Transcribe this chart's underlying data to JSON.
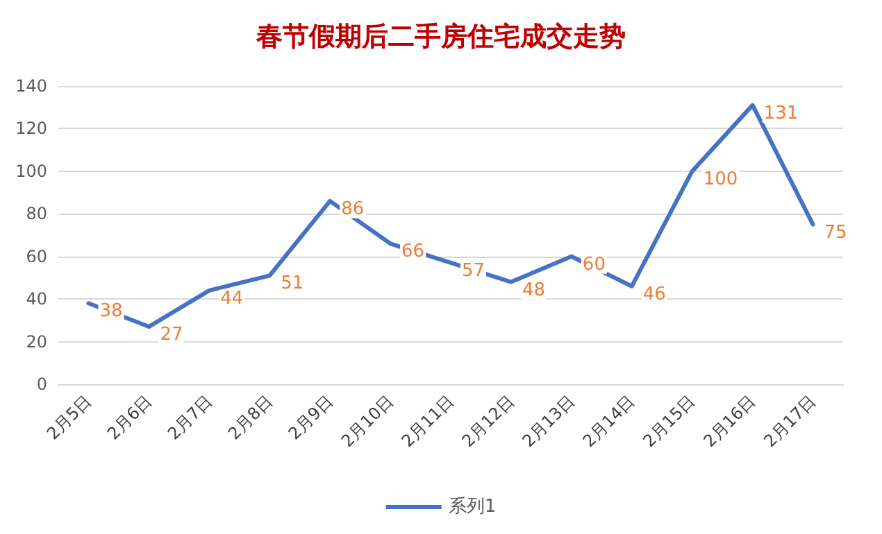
{
  "chart_data": {
    "type": "line",
    "title": "春节假期后二手房住宅成交走势",
    "categories": [
      "2月5日",
      "2月6日",
      "2月7日",
      "2月8日",
      "2月9日",
      "2月10日",
      "2月11日",
      "2月12日",
      "2月13日",
      "2月14日",
      "2月15日",
      "2月16日",
      "2月17日"
    ],
    "series": [
      {
        "name": "系列1",
        "color": "#4472c4",
        "values": [
          38,
          27,
          44,
          51,
          86,
          66,
          57,
          48,
          60,
          46,
          100,
          131,
          75
        ]
      }
    ],
    "ylim": [
      0,
      140
    ],
    "yticks": [
      0,
      20,
      40,
      60,
      80,
      100,
      120,
      140
    ],
    "grid": "y",
    "legend": "bottom",
    "marker": "none",
    "line_style": "solid",
    "data_labels": true
  }
}
